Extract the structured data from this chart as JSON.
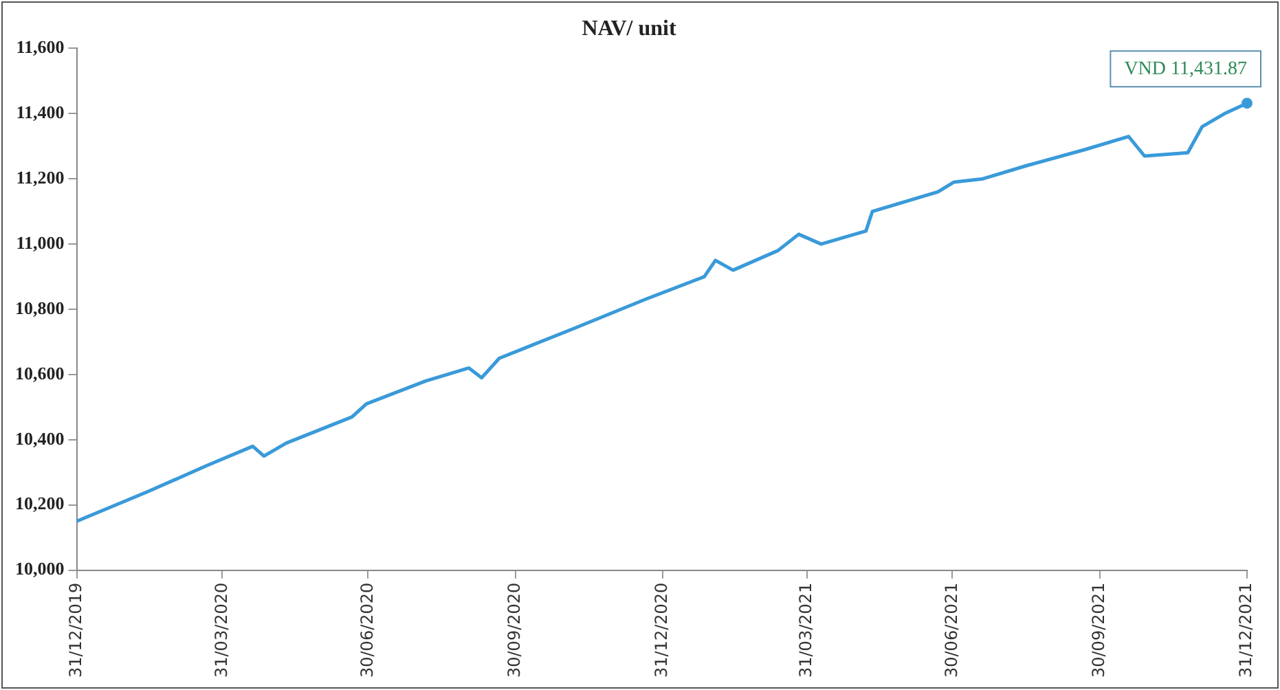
{
  "chart_data": {
    "type": "line",
    "title": "NAV/ unit",
    "x": [
      "2019-12-31",
      "2020-02-13",
      "2020-03-21",
      "2020-04-19",
      "2020-04-26",
      "2020-05-10",
      "2020-06-20",
      "2020-06-29",
      "2020-08-05",
      "2020-09-01",
      "2020-09-09",
      "2020-09-20",
      "2020-11-05",
      "2020-12-20",
      "2021-01-26",
      "2021-02-02",
      "2021-02-13",
      "2021-03-13",
      "2021-03-26",
      "2021-04-09",
      "2021-05-07",
      "2021-05-11",
      "2021-06-21",
      "2021-07-01",
      "2021-07-19",
      "2021-08-15",
      "2021-09-21",
      "2021-10-18",
      "2021-10-28",
      "2021-11-24",
      "2021-12-03",
      "2021-12-17",
      "2021-12-31"
    ],
    "series": [
      {
        "color": "#3a9ad9",
        "values": [
          10150,
          10240,
          10320,
          10380,
          10350,
          10390,
          10470,
          10510,
          10580,
          10620,
          10590,
          10650,
          10740,
          10830,
          10900,
          10950,
          10920,
          10980,
          11030,
          11000,
          11040,
          11100,
          11160,
          11190,
          11200,
          11240,
          11290,
          11330,
          11270,
          11280,
          11360,
          11400,
          11431.87
        ]
      }
    ],
    "xlim": [
      "2019-12-31",
      "2021-12-31"
    ],
    "xticks": [
      {
        "value": "2019-12-31",
        "label": "31/12/2019"
      },
      {
        "value": "2020-03-31",
        "label": "31/03/2020"
      },
      {
        "value": "2020-06-30",
        "label": "30/06/2020"
      },
      {
        "value": "2020-09-30",
        "label": "30/09/2020"
      },
      {
        "value": "2020-12-31",
        "label": "31/12/2020"
      },
      {
        "value": "2021-03-31",
        "label": "31/03/2021"
      },
      {
        "value": "2021-06-30",
        "label": "30/06/2021"
      },
      {
        "value": "2021-09-30",
        "label": "30/09/2021"
      },
      {
        "value": "2021-12-31",
        "label": "31/12/2021"
      }
    ],
    "ylim": [
      10000,
      11600
    ],
    "yticks": [
      {
        "value": 10000,
        "label": "10,000"
      },
      {
        "value": 10200,
        "label": "10,200"
      },
      {
        "value": 10400,
        "label": "10,400"
      },
      {
        "value": 10600,
        "label": "10,600"
      },
      {
        "value": 10800,
        "label": "10,800"
      },
      {
        "value": 11000,
        "label": "11,000"
      },
      {
        "value": 11200,
        "label": "11,200"
      },
      {
        "value": 11400,
        "label": "11,400"
      },
      {
        "value": 11600,
        "label": "11,600"
      }
    ],
    "annotations": [
      {
        "text": "VND 11,431.87",
        "x": "2021-12-31",
        "y": 11431.87
      }
    ],
    "grid": false,
    "legend": false,
    "marker": "none",
    "line_style": "solid"
  }
}
